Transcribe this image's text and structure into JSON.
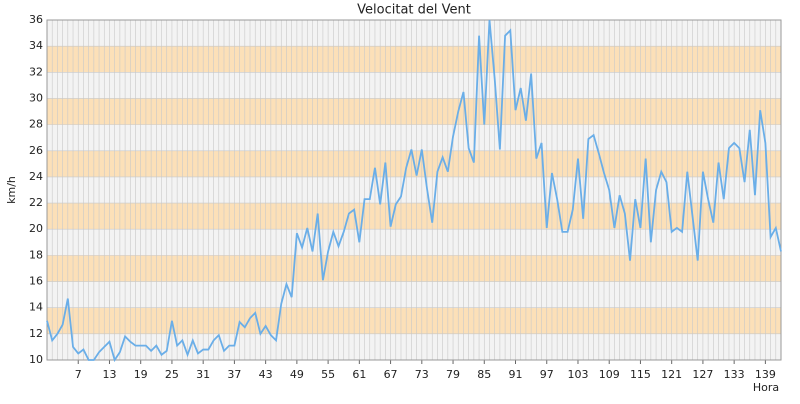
{
  "chart_data": {
    "type": "line",
    "title": "Velocitat del Vent",
    "y_label": "km/h",
    "x_label": "Hora",
    "x": [
      1,
      2,
      3,
      4,
      5,
      6,
      7,
      8,
      9,
      10,
      11,
      12,
      13,
      14,
      15,
      16,
      17,
      18,
      19,
      20,
      21,
      22,
      23,
      24,
      25,
      26,
      27,
      28,
      29,
      30,
      31,
      32,
      33,
      34,
      35,
      36,
      37,
      38,
      39,
      40,
      41,
      42,
      43,
      44,
      45,
      46,
      47,
      48,
      49,
      50,
      51,
      52,
      53,
      54,
      55,
      56,
      57,
      58,
      59,
      60,
      61,
      62,
      63,
      64,
      65,
      66,
      67,
      68,
      69,
      70,
      71,
      72,
      73,
      74,
      75,
      76,
      77,
      78,
      79,
      80,
      81,
      82,
      83,
      84,
      85,
      86,
      87,
      88,
      89,
      90,
      91,
      92,
      93,
      94,
      95,
      96,
      97,
      98,
      99,
      100,
      101,
      102,
      103,
      104,
      105,
      106,
      107,
      108,
      109,
      110,
      111,
      112,
      113,
      114,
      115,
      116,
      117,
      118,
      119,
      120,
      121,
      122,
      123,
      124,
      125,
      126,
      127,
      128,
      129,
      130,
      131,
      132,
      133,
      134,
      135,
      136,
      137,
      138,
      139,
      140,
      141,
      142
    ],
    "series": [
      {
        "name": "Velocitat",
        "color": "#6aaee8",
        "values": [
          13,
          11.5,
          12,
          12.7,
          14.7,
          11,
          10.5,
          10.8,
          10,
          10,
          10.6,
          11,
          11.4,
          10,
          10.6,
          11.8,
          11.4,
          11.1,
          11.1,
          11.1,
          10.7,
          11.1,
          10.4,
          10.7,
          13,
          11.1,
          11.5,
          10.4,
          11.5,
          10.5,
          10.8,
          10.8,
          11.5,
          11.9,
          10.7,
          11.1,
          11.1,
          12.9,
          12.5,
          13.2,
          13.6,
          12,
          12.6,
          11.9,
          11.5,
          14.3,
          15.8,
          14.8,
          19.7,
          18.6,
          20.1,
          18.3,
          21.2,
          16.1,
          18.3,
          19.8,
          18.7,
          19.8,
          21.2,
          21.5,
          19,
          22.3,
          22.3,
          24.7,
          21.9,
          25.1,
          20.2,
          21.9,
          22.5,
          24.7,
          26.1,
          24.1,
          26.1,
          23.1,
          20.5,
          24.4,
          25.5,
          24.4,
          27.1,
          29,
          30.5,
          26.2,
          25.1,
          34.8,
          28,
          36,
          31.5,
          26.1,
          34.8,
          35.2,
          29.1,
          30.8,
          28.3,
          31.9,
          25.4,
          26.6,
          20.1,
          24.3,
          22.3,
          19.8,
          19.8,
          21.5,
          25.4,
          20.8,
          26.9,
          27.2,
          25.8,
          24.3,
          23,
          20.1,
          22.6,
          21.2,
          17.6,
          22.3,
          20.1,
          25.4,
          19,
          23,
          24.4,
          23.6,
          19.8,
          20.1,
          19.8,
          24.4,
          21,
          17.6,
          24.4,
          22.3,
          20.5,
          25.1,
          22.3,
          26.2,
          26.6,
          26.2,
          23.6,
          27.6,
          22.6,
          29.1,
          26.6,
          19.4,
          20.1,
          18.3
        ]
      }
    ],
    "xlim": [
      1,
      142
    ],
    "xticks": [
      7,
      13,
      19,
      25,
      31,
      37,
      43,
      49,
      55,
      61,
      67,
      73,
      79,
      85,
      91,
      97,
      103,
      109,
      115,
      121,
      127,
      133,
      139
    ],
    "ylim": [
      10,
      36
    ],
    "yticks": [
      10,
      12,
      14,
      16,
      18,
      20,
      22,
      24,
      26,
      28,
      30,
      32,
      34,
      36
    ],
    "band_colors": [
      "#f3f3f3",
      "#fce0b8"
    ],
    "grid": true
  }
}
